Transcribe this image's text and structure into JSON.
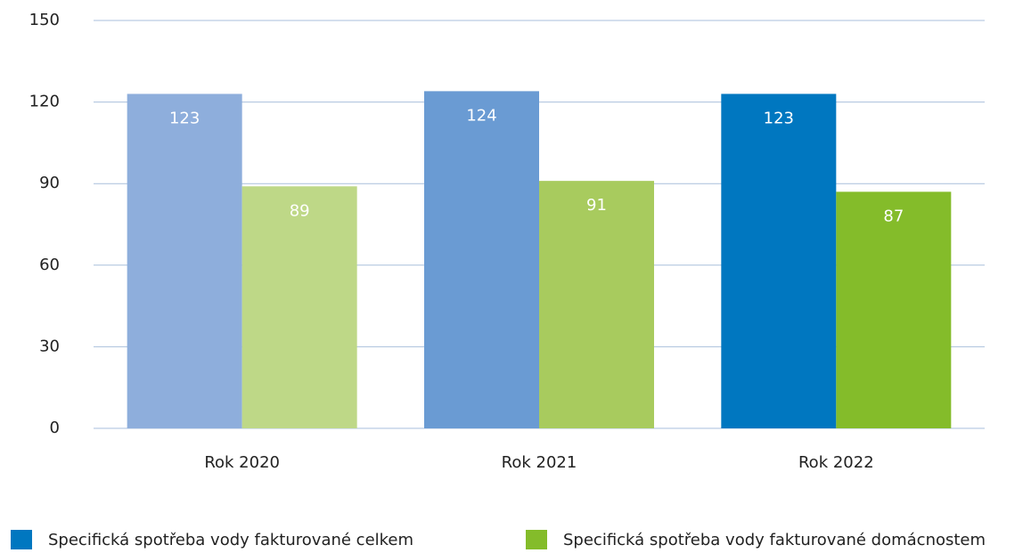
{
  "chart_data": {
    "type": "bar",
    "categories": [
      "Rok 2020",
      "Rok 2021",
      "Rok 2022"
    ],
    "series": [
      {
        "name": "Specifická spotřeba vody fakturované celkem",
        "color": "#0077c0",
        "colors": [
          "#8eaedc",
          "#6a9bd3",
          "#0077c0"
        ],
        "values": [
          123,
          124,
          123
        ]
      },
      {
        "name": "Specifická spotřeba vody fakturované domácnostem",
        "color": "#84bc2a",
        "colors": [
          "#bed887",
          "#a8cb5e",
          "#84bc2a"
        ],
        "values": [
          89,
          91,
          87
        ]
      }
    ],
    "ylim": [
      0,
      150
    ],
    "yticks": [
      0,
      30,
      60,
      90,
      120,
      150
    ],
    "grid": true,
    "legend": "bottom"
  }
}
